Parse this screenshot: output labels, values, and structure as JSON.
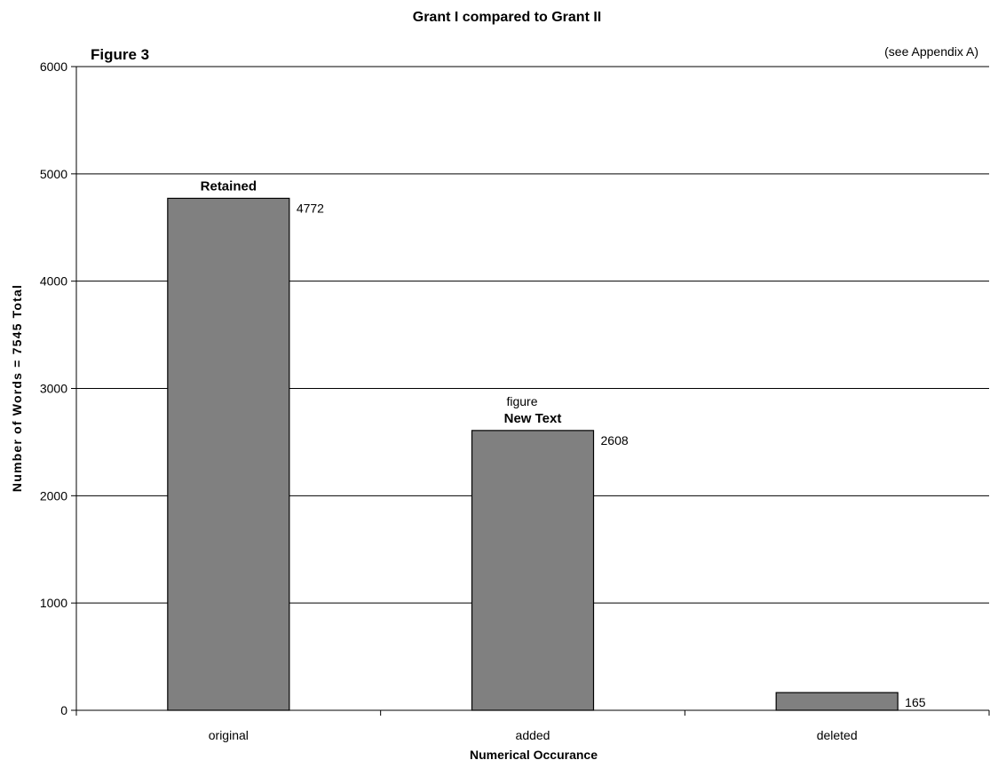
{
  "chart_data": {
    "type": "bar",
    "title": "Grant I compared to Grant II",
    "figure_label": "Figure 3",
    "note": "(see Appendix A)",
    "xlabel": "Numerical Occurance",
    "ylabel": "Number of Words = 7545 Total",
    "categories": [
      "original",
      "added",
      "deleted"
    ],
    "values": [
      4772,
      2608,
      165
    ],
    "data_labels": [
      "4772",
      "2608",
      "165"
    ],
    "bar_annotations": [
      "Retained",
      "New Text",
      ""
    ],
    "stray_annotation": "figure",
    "ylim": [
      0,
      6000
    ],
    "yticks": [
      0,
      1000,
      2000,
      3000,
      4000,
      5000,
      6000
    ],
    "grid": true,
    "legend": "none",
    "colors": {
      "bar_fill": "#808080",
      "bar_stroke": "#000000",
      "grid": "#000000"
    }
  }
}
